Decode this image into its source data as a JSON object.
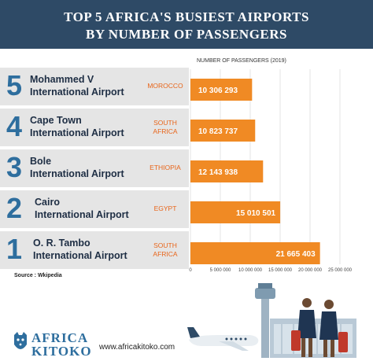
{
  "header": {
    "title_line1": "TOP 5 AFRICA'S BUSIEST AIRPORTS",
    "title_line2": "BY NUMBER OF PASSENGERS"
  },
  "source": "Source : Wkipedia",
  "brand": {
    "name_line1": "AFRICA",
    "name_line2": "KITOKO",
    "website": "www.africakitoko.com"
  },
  "colors": {
    "header": "#2e4a66",
    "bar": "#f08a24",
    "rank": "#2e6e9e",
    "country": "#e8651a",
    "row_bg": "#e5e5e5"
  },
  "chart_data": {
    "type": "bar",
    "orientation": "horizontal",
    "xlabel": "NUMBER OF PASSENGERS (2019)",
    "xlim": [
      0,
      25000000
    ],
    "xticks": [
      "0",
      "5 000 000",
      "10 000 000",
      "15 000 000",
      "20 000 000",
      "25 000 000"
    ],
    "grid": true,
    "rows": [
      {
        "rank": "5",
        "airport_line1": "Mohammed V",
        "airport_line2": "International Airport",
        "country_line1": "MOROCCO",
        "country_line2": "",
        "value": 10306293,
        "label": "10 306 293"
      },
      {
        "rank": "4",
        "airport_line1": "Cape Town",
        "airport_line2": "International Airport",
        "country_line1": "SOUTH",
        "country_line2": "AFRICA",
        "value": 10823737,
        "label": "10 823 737"
      },
      {
        "rank": "3",
        "airport_line1": "Bole",
        "airport_line2": "International Airport",
        "country_line1": "ETHIOPIA",
        "country_line2": "",
        "value": 12143938,
        "label": "12 143 938"
      },
      {
        "rank": "2",
        "airport_line1": "Cairo",
        "airport_line2": "International Airport",
        "country_line1": "EGYPT",
        "country_line2": "",
        "value": 15010501,
        "label": "15 010 501"
      },
      {
        "rank": "1",
        "airport_line1": "O. R. Tambo",
        "airport_line2": "International Airport",
        "country_line1": "SOUTH",
        "country_line2": "AFRICA",
        "value": 21665403,
        "label": "21 665 403"
      }
    ]
  }
}
